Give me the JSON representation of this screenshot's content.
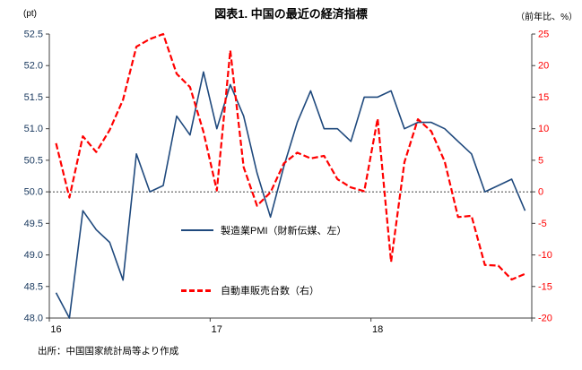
{
  "header": {
    "title": "図表1. 中国の最近の経済指標",
    "left_unit": "(pt)",
    "right_unit": "（前年比、%）"
  },
  "legend": {
    "pmi": "製造業PMI（財新伝媒、左）",
    "auto": "自動車販売台数（右）"
  },
  "footer": {
    "source": "出所：中国国家統計局等より作成"
  },
  "colors": {
    "pmi_line": "#1F497D",
    "auto_line": "#FF0000",
    "left_axis_text": "#17375D",
    "right_axis_text": "#FF0000",
    "axis": "#404040",
    "zero_line": "#000000"
  },
  "chart_data": {
    "type": "line",
    "title": "図表1. 中国の最近の経済指標",
    "x": [
      "2016-01",
      "2016-02",
      "2016-03",
      "2016-04",
      "2016-05",
      "2016-06",
      "2016-07",
      "2016-08",
      "2016-09",
      "2016-10",
      "2016-11",
      "2016-12",
      "2017-01",
      "2017-02",
      "2017-03",
      "2017-04",
      "2017-05",
      "2017-06",
      "2017-07",
      "2017-08",
      "2017-09",
      "2017-10",
      "2017-11",
      "2017-12",
      "2018-01",
      "2018-02",
      "2018-03",
      "2018-04",
      "2018-05",
      "2018-06",
      "2018-07",
      "2018-08",
      "2018-09",
      "2018-10",
      "2018-11",
      "2018-12"
    ],
    "x_axis": {
      "tick_labels": [
        {
          "label": "16",
          "index": 0
        },
        {
          "label": "17",
          "index": 12
        },
        {
          "label": "18",
          "index": 24
        }
      ],
      "tick_boundaries": [
        0,
        12,
        24,
        36
      ]
    },
    "left_axis": {
      "label": "(pt)",
      "min": 48.0,
      "max": 52.5,
      "tick_labels": [
        "52.5",
        "52.0",
        "51.5",
        "51.0",
        "50.5",
        "50.0",
        "49.5",
        "49.0",
        "48.5",
        "48.0"
      ]
    },
    "right_axis": {
      "label": "（前年比、%）",
      "min": -20,
      "max": 25,
      "tick_labels": [
        "25",
        "20",
        "15",
        "10",
        "5",
        "0",
        "-5",
        "-10",
        "-15",
        "-20"
      ]
    },
    "zero_line": {
      "axis": "right",
      "value": 0
    },
    "grid": false,
    "legend_position": "inside-plot",
    "series": [
      {
        "name": "製造業PMI（財新伝媒、左）",
        "axis": "left",
        "color": "#1F497D",
        "style": "solid",
        "values": [
          48.4,
          48.0,
          49.7,
          49.4,
          49.2,
          48.6,
          50.6,
          50.0,
          50.1,
          51.2,
          50.9,
          51.9,
          51.0,
          51.7,
          51.2,
          50.3,
          49.6,
          50.4,
          51.1,
          51.6,
          51.0,
          51.0,
          50.8,
          51.5,
          51.5,
          51.6,
          51.0,
          51.1,
          51.1,
          51.0,
          50.8,
          50.6,
          50.0,
          50.1,
          50.2,
          49.7
        ]
      },
      {
        "name": "自動車販売台数（右）",
        "axis": "right",
        "color": "#FF0000",
        "style": "dashed",
        "values": [
          7.7,
          -0.9,
          8.8,
          6.3,
          9.8,
          14.6,
          23.0,
          24.2,
          25.0,
          18.7,
          16.6,
          9.5,
          0.2,
          22.4,
          3.9,
          -2.2,
          -0.1,
          4.5,
          6.2,
          5.3,
          5.7,
          2.0,
          0.7,
          0.1,
          11.6,
          -11.1,
          4.7,
          11.5,
          9.6,
          4.8,
          -4.0,
          -3.8,
          -11.6,
          -11.7,
          -13.9,
          -13.0
        ]
      }
    ]
  }
}
